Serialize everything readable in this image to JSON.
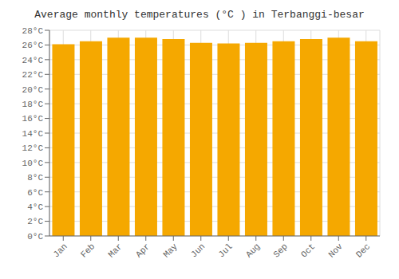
{
  "chart_data": {
    "type": "bar",
    "title": "Average monthly temperatures (°C ) in Terbanggi-besar",
    "categories": [
      "Jan",
      "Feb",
      "Mar",
      "Apr",
      "May",
      "Jun",
      "Jul",
      "Aug",
      "Sep",
      "Oct",
      "Nov",
      "Dec"
    ],
    "values": [
      26.1,
      26.5,
      27.0,
      27.0,
      26.8,
      26.3,
      26.2,
      26.3,
      26.5,
      26.8,
      27.0,
      26.5
    ],
    "color": "#F5A800",
    "ylim": [
      0,
      28
    ],
    "yticks": [
      {
        "value": 0,
        "label": "0°C"
      },
      {
        "value": 2,
        "label": "2°C"
      },
      {
        "value": 4,
        "label": "4°C"
      },
      {
        "value": 6,
        "label": "6°C"
      },
      {
        "value": 8,
        "label": "8°C"
      },
      {
        "value": 10,
        "label": "10°C"
      },
      {
        "value": 12,
        "label": "12°C"
      },
      {
        "value": 14,
        "label": "14°C"
      },
      {
        "value": 16,
        "label": "16°C"
      },
      {
        "value": 18,
        "label": "18°C"
      },
      {
        "value": 20,
        "label": "20°C"
      },
      {
        "value": 22,
        "label": "22°C"
      },
      {
        "value": 24,
        "label": "24°C"
      },
      {
        "value": 26,
        "label": "26°C"
      },
      {
        "value": 28,
        "label": "28°C"
      }
    ],
    "grid": true
  }
}
